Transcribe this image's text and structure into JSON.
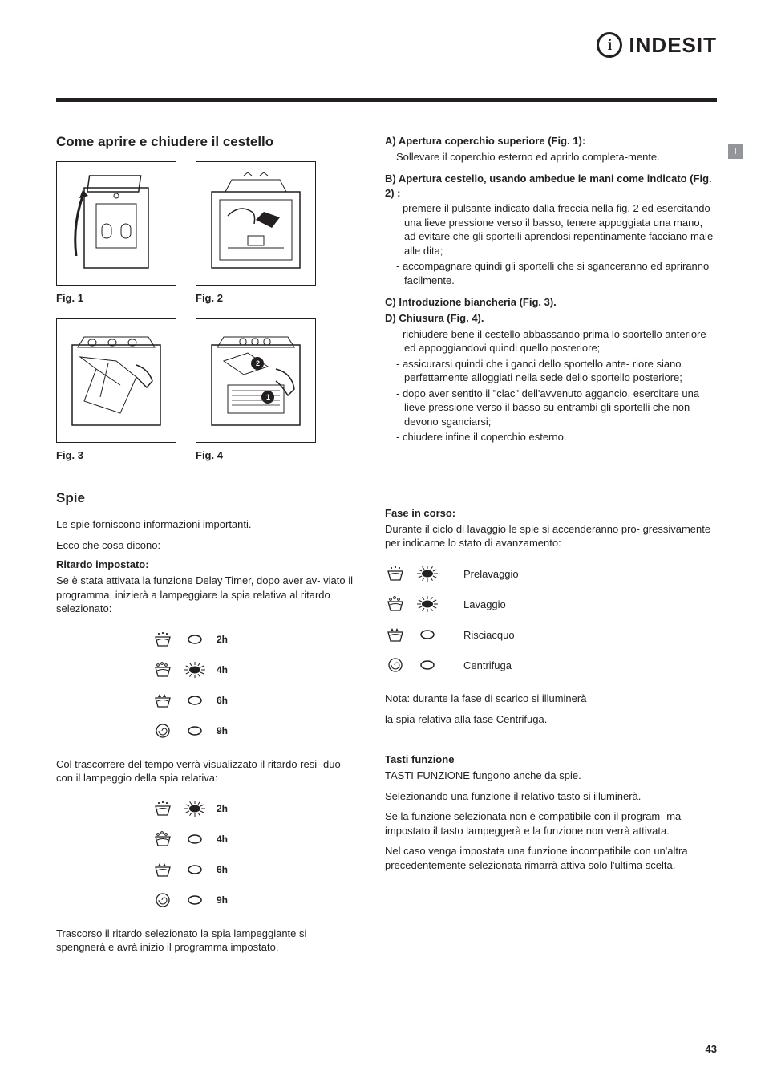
{
  "logo": {
    "icon_glyph": "i",
    "brand": "INDESIT"
  },
  "side_tab": "I",
  "page_number": "43",
  "section1_title": "Come  aprire e chiudere il cestello",
  "fig_captions": {
    "f1": "Fig. 1",
    "f2": "Fig. 2",
    "f3": "Fig. 3",
    "f4": "Fig. 4"
  },
  "sectionA": {
    "title": "A) Apertura coperchio superiore (Fig. 1):",
    "body": "Sollevare il coperchio esterno ed aprirlo completa-mente."
  },
  "sectionB": {
    "title": "B) Apertura cestello, usando ambedue le mani come indicato (Fig. 2) :",
    "li1": "premere il pulsante indicato dalla freccia nella fig. 2 ed esercitando una lieve pressione verso il basso, tenere appoggiata una mano, ad evitare che gli sportelli aprendosi repentinamente facciano male alle dita;",
    "li2": "accompagnare  quindi gli sportelli che si sganceranno ed apriranno facilmente."
  },
  "sectionC": {
    "title": "C) Introduzione biancheria (Fig. 3)."
  },
  "sectionD": {
    "title": "D) Chiusura (Fig. 4).",
    "li1": "richiudere bene il cestello abbassando prima lo sportello anteriore ed appoggiandovi quindi quello posteriore;",
    "li2": "assicurarsi quindi che i ganci dello sportello ante- riore siano perfettamente alloggiati nella sede dello sportello posteriore;",
    "li3": "dopo aver sentito il \"clac\" dell'avvenuto aggancio, esercitare una lieve pressione verso il basso su entrambi gli sportelli che non devono sganciarsi;",
    "li4": "chiudere infine il coperchio esterno."
  },
  "spie": {
    "title": "Spie",
    "intro1": "Le spie forniscono informazioni importanti.",
    "intro2": "Ecco che cosa dicono:",
    "delay_title": "Ritardo impostato:",
    "delay_body": "Se è stata attivata la funzione Delay Timer, dopo aver av- viato il programma, inizierà a lampeggiare la spia relativa al ritardo selezionato:",
    "delay_rows1": [
      {
        "label": "2h",
        "lit": false
      },
      {
        "label": "4h",
        "lit": true
      },
      {
        "label": "6h",
        "lit": false
      },
      {
        "label": "9h",
        "lit": false
      }
    ],
    "mid_body": "Col trascorrere del tempo verrà visualizzato il ritardo resi- duo con il lampeggio della spia relativa:",
    "delay_rows2": [
      {
        "label": "2h",
        "lit": true
      },
      {
        "label": "4h",
        "lit": false
      },
      {
        "label": "6h",
        "lit": false
      },
      {
        "label": "9h",
        "lit": false
      }
    ],
    "end_body": "Trascorso il ritardo selezionato la spia lampeggiante si spengnerà e avrà inizio il programma impostato."
  },
  "fase": {
    "title": "Fase in corso:",
    "body": "Durante il ciclo di lavaggio le spie si accenderanno pro- gressivamente per indicarne lo stato di avanzamento:",
    "rows": [
      {
        "label": "Prelavaggio",
        "lit": true
      },
      {
        "label": "Lavaggio",
        "lit": true
      },
      {
        "label": "Risciacquo",
        "lit": false
      },
      {
        "label": "Centrifuga",
        "lit": false
      }
    ],
    "note1": "Nota: durante la fase di scarico si illuminerà",
    "note2": "la spia relativa alla fase Centrifuga."
  },
  "tasti": {
    "title": "Tasti funzione",
    "p1": "TASTI FUNZIONE fungono anche da spie.",
    "p2": "Selezionando una funzione il relativo tasto si illuminerà.",
    "p3": "Se la funzione selezionata non è compatibile con il program- ma impostato il tasto lampeggerà e la funzione non verrà attivata.",
    "p4": "Nel caso venga impostata una funzione incompatibile con un'altra precedentemente selezionata rimarrà attiva solo l'ultima scelta."
  },
  "colors": {
    "text": "#231f20",
    "rule": "#231f20",
    "tab_bg": "#939598",
    "background": "#ffffff"
  }
}
